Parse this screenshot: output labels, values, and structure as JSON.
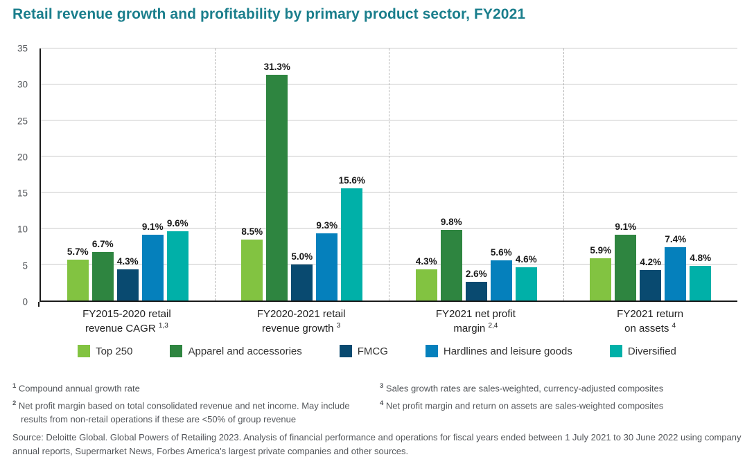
{
  "title": "Retail revenue growth and profitability by primary product sector, FY2021",
  "colors": {
    "title": "#1A7E8C",
    "axis": "#1A1A1A",
    "gridline": "#C9C9C9",
    "separator": "#B5B5B5",
    "footnote_text": "#53565A"
  },
  "chart_data": {
    "type": "bar",
    "grid": "horizontal",
    "legend_position": "bottom",
    "ylim": [
      0,
      35
    ],
    "yticks": [
      0,
      5,
      10,
      15,
      20,
      25,
      30,
      35
    ],
    "value_label_suffix": "%",
    "categories": [
      {
        "line1": "FY2015-2020 retail",
        "line2": "revenue CAGR",
        "sup": "1,3"
      },
      {
        "line1": "FY2020-2021 retail",
        "line2": "revenue growth",
        "sup": "3"
      },
      {
        "line1": "FY2021 net profit",
        "line2": "margin",
        "sup": "2,4"
      },
      {
        "line1": "FY2021 return",
        "line2": "on assets",
        "sup": "4"
      }
    ],
    "series": [
      {
        "name": "Top 250",
        "color": "#82C341",
        "values": [
          5.7,
          8.5,
          4.3,
          5.9
        ]
      },
      {
        "name": "Apparel and accessories",
        "color": "#2E8540",
        "values": [
          6.7,
          31.3,
          9.8,
          9.1
        ]
      },
      {
        "name": "FMCG",
        "color": "#094A70",
        "values": [
          4.3,
          5.0,
          2.6,
          4.2
        ]
      },
      {
        "name": "Hardlines and leisure goods",
        "color": "#0580BC",
        "values": [
          9.1,
          9.3,
          5.6,
          7.4
        ]
      },
      {
        "name": "Diversified",
        "color": "#00B0A8",
        "values": [
          9.6,
          15.6,
          4.6,
          4.8
        ]
      }
    ]
  },
  "footnotes": {
    "left": [
      {
        "marker": "1",
        "text": "Compound annual growth rate"
      },
      {
        "marker": "2",
        "text": "Net profit margin based on total consolidated revenue and net income. May include results from non-retail operations if these are <50% of group revenue"
      }
    ],
    "right": [
      {
        "marker": "3",
        "text": "Sales growth rates are sales-weighted, currency-adjusted composites"
      },
      {
        "marker": "4",
        "text": "Net profit margin and return on assets are sales-weighted composites"
      }
    ]
  },
  "source": "Source: Deloitte Global. Global Powers of Retailing 2023. Analysis of financial performance and operations for fiscal years ended between 1 July 2021 to 30 June 2022 using company annual reports, Supermarket News, Forbes America's largest private companies and other sources."
}
